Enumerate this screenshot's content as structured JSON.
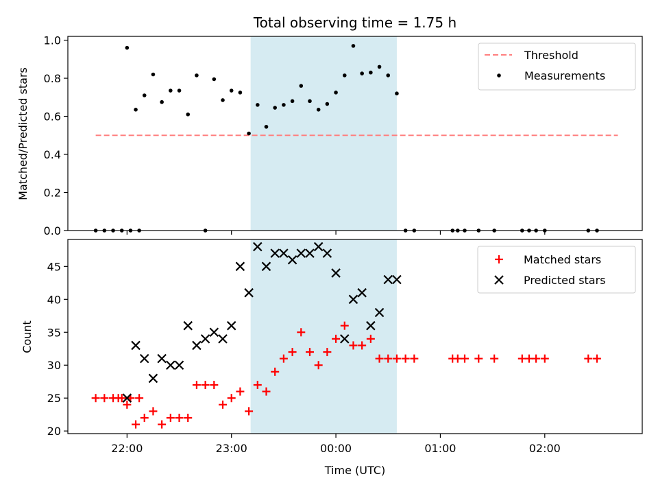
{
  "chart_data": {
    "type": "scatter",
    "title": "Total observing time = 1.75 h",
    "xlabel": "Time (UTC)",
    "xlim": [
      "21:26",
      "02:56"
    ],
    "x_ticks": [
      "22:00",
      "23:00",
      "00:00",
      "01:00",
      "02:00"
    ],
    "shaded_span": {
      "start": "23:11",
      "end": "00:35",
      "color": "#add8e6"
    },
    "panels": [
      {
        "name": "top",
        "ylabel": "Matched/Predicted stars",
        "ylim": [
          0,
          1.02
        ],
        "y_ticks": [
          "0.0",
          "0.2",
          "0.4",
          "0.6",
          "0.8",
          "1.0"
        ],
        "legend": {
          "placement": "upper right",
          "entries": [
            "Threshold",
            "Measurements"
          ]
        },
        "series": [
          {
            "name": "Threshold",
            "style": "dashed-line",
            "color": "#ff7f7f",
            "x": [
              "21:42",
              "02:42"
            ],
            "y": [
              0.5,
              0.5
            ]
          },
          {
            "name": "Measurements",
            "style": "dot",
            "color": "#000000",
            "x": [
              "21:42",
              "21:47",
              "21:52",
              "21:57",
              "22:02",
              "22:07",
              "22:00",
              "22:05",
              "22:10",
              "22:15",
              "22:20",
              "22:25",
              "22:30",
              "22:35",
              "22:40",
              "22:45",
              "22:50",
              "22:55",
              "23:00",
              "23:05",
              "23:10",
              "23:15",
              "23:20",
              "23:25",
              "23:30",
              "23:35",
              "23:40",
              "23:45",
              "23:50",
              "23:55",
              "00:00",
              "00:05",
              "00:10",
              "00:15",
              "00:20",
              "00:25",
              "00:30",
              "00:35",
              "00:40",
              "00:45",
              "01:07",
              "01:10",
              "01:14",
              "01:22",
              "01:31",
              "01:47",
              "01:51",
              "01:55",
              "02:00",
              "02:25",
              "02:30"
            ],
            "y": [
              0,
              0,
              0,
              0,
              0,
              0,
              0.96,
              0.635,
              0.71,
              0.82,
              0.675,
              0.735,
              0.735,
              0.61,
              0.815,
              0,
              0.795,
              0.685,
              0.735,
              0.725,
              0.51,
              0.66,
              0.545,
              0.645,
              0.66,
              0.68,
              0.76,
              0.68,
              0.635,
              0.665,
              0.725,
              0.815,
              0.97,
              0.825,
              0.83,
              0.86,
              0.815,
              0.72,
              0,
              0,
              0,
              0,
              0,
              0,
              0,
              0,
              0,
              0,
              0,
              0,
              0
            ]
          }
        ]
      },
      {
        "name": "bottom",
        "ylabel": "Count",
        "ylim": [
          19.6,
          49.1
        ],
        "y_ticks": [
          "20",
          "25",
          "30",
          "35",
          "40",
          "45"
        ],
        "legend": {
          "placement": "upper right",
          "entries": [
            "Matched stars",
            "Predicted stars"
          ]
        },
        "series": [
          {
            "name": "Matched stars",
            "marker": "+",
            "color": "#ff0000",
            "x": [
              "21:42",
              "21:47",
              "21:52",
              "21:57",
              "22:02",
              "22:07",
              "21:55",
              "22:00",
              "22:05",
              "22:10",
              "22:15",
              "22:20",
              "22:25",
              "22:30",
              "22:35",
              "22:40",
              "22:45",
              "22:50",
              "22:55",
              "23:00",
              "23:05",
              "23:10",
              "23:15",
              "23:20",
              "23:25",
              "23:30",
              "23:35",
              "23:40",
              "23:45",
              "23:50",
              "23:55",
              "00:00",
              "00:05",
              "00:10",
              "00:15",
              "00:20",
              "00:25",
              "00:30",
              "00:35",
              "00:40",
              "00:45",
              "01:07",
              "01:10",
              "01:14",
              "01:22",
              "01:31",
              "01:47",
              "01:51",
              "01:55",
              "02:00",
              "02:25",
              "02:30"
            ],
            "y": [
              25,
              25,
              25,
              25,
              25,
              25,
              25,
              24,
              21,
              22,
              23,
              21,
              22,
              22,
              22,
              27,
              27,
              27,
              24,
              25,
              26,
              23,
              27,
              26,
              29,
              31,
              32,
              35,
              32,
              30,
              32,
              34,
              36,
              33,
              33,
              34,
              31,
              31,
              31,
              31,
              31,
              31,
              31,
              31,
              31,
              31,
              31,
              31,
              31,
              31,
              31,
              31
            ]
          },
          {
            "name": "Predicted stars",
            "marker": "x",
            "color": "#000000",
            "x": [
              "22:00",
              "22:05",
              "22:10",
              "22:15",
              "22:20",
              "22:25",
              "22:30",
              "22:35",
              "22:40",
              "22:45",
              "22:50",
              "22:55",
              "23:00",
              "23:05",
              "23:10",
              "23:15",
              "23:20",
              "23:25",
              "23:30",
              "23:35",
              "23:40",
              "23:45",
              "23:50",
              "23:55",
              "00:00",
              "00:05",
              "00:10",
              "00:15",
              "00:20",
              "00:25",
              "00:30",
              "00:35"
            ],
            "y": [
              25,
              33,
              31,
              28,
              31,
              30,
              30,
              36,
              33,
              34,
              35,
              34,
              36,
              45,
              41,
              48,
              45,
              47,
              47,
              46,
              47,
              47,
              48,
              47,
              44,
              34,
              40,
              41,
              36,
              38,
              43,
              43
            ]
          }
        ]
      }
    ]
  }
}
